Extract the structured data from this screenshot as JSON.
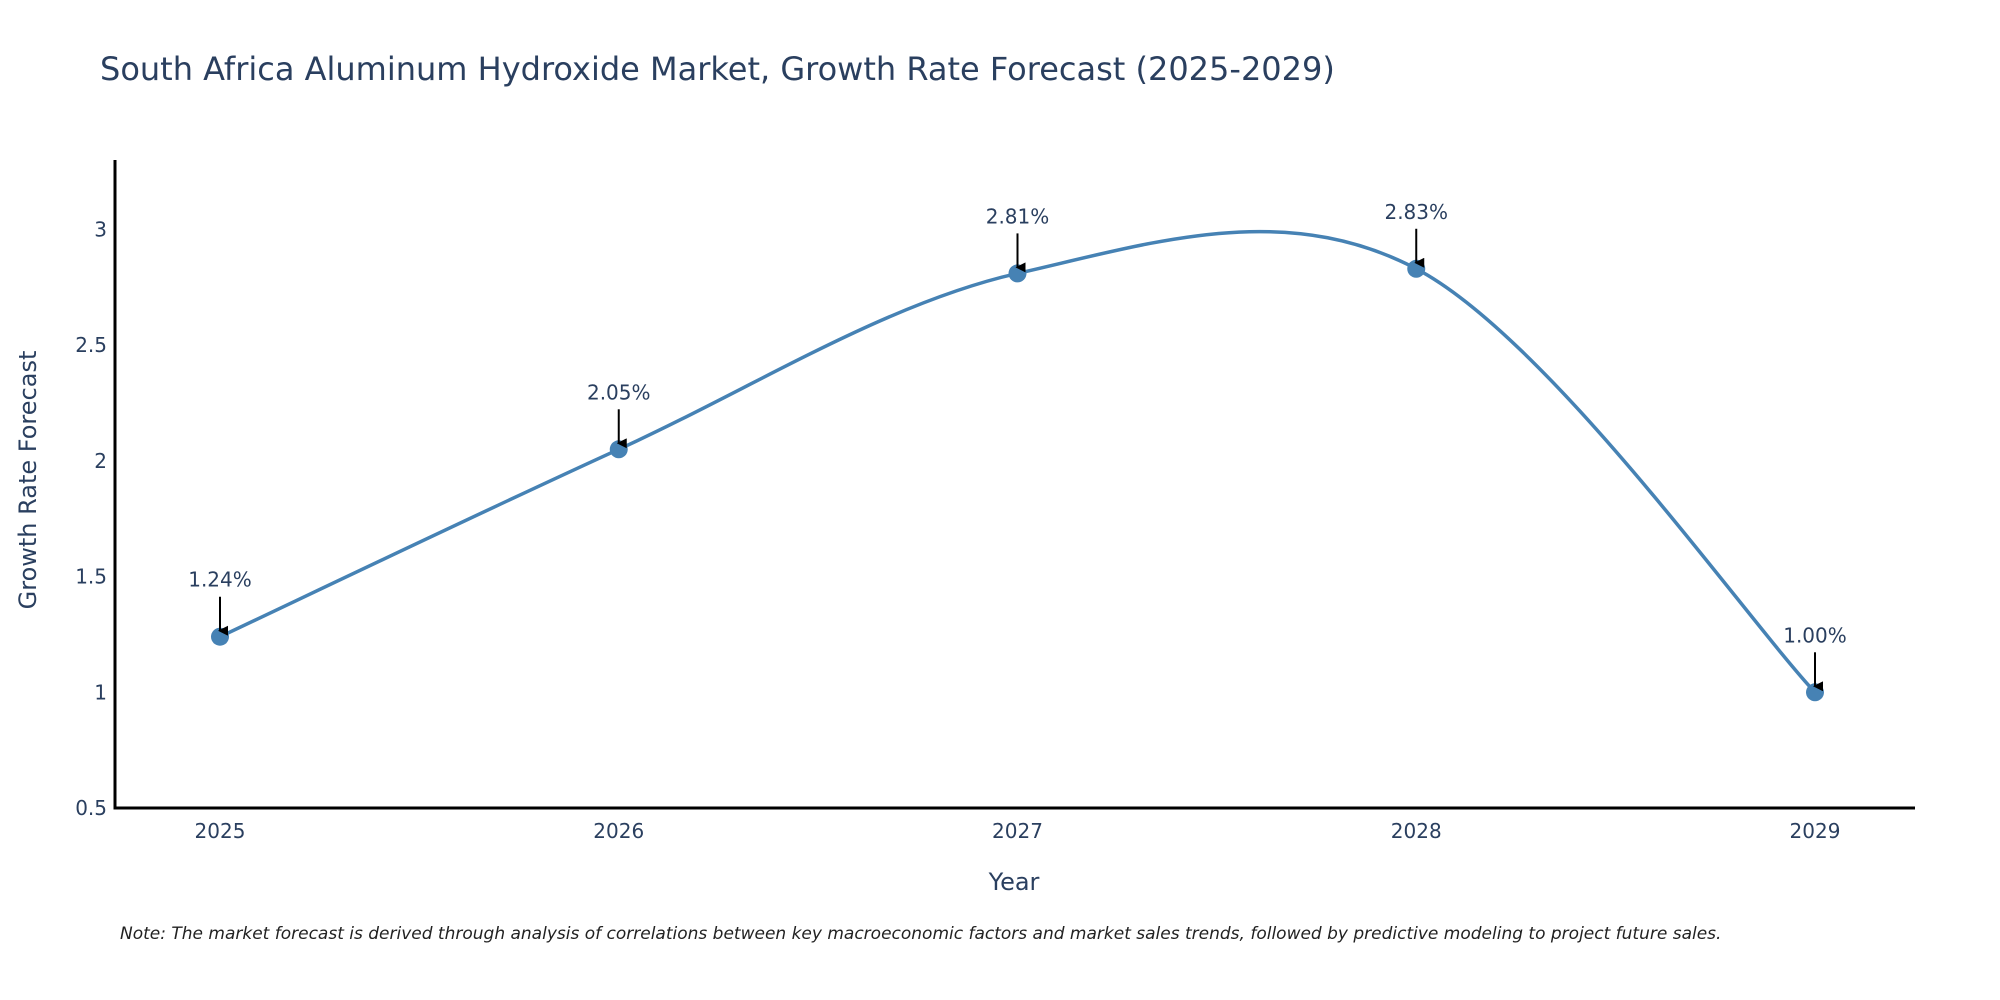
{
  "chart_data": {
    "type": "line",
    "title": "South Africa Aluminum Hydroxide Market, Growth Rate Forecast (2025-2029)",
    "xlabel": "Year",
    "ylabel": "Growth Rate Forecast",
    "categories": [
      "2025",
      "2026",
      "2027",
      "2028",
      "2029"
    ],
    "series": [
      {
        "name": "Growth Rate Forecast",
        "values": [
          1.24,
          2.05,
          2.81,
          2.83,
          1.0
        ],
        "color": "#4682b4",
        "line_shape": "spline"
      }
    ],
    "data_labels": [
      "1.24%",
      "2.05%",
      "2.81%",
      "2.83%",
      "1.00%"
    ],
    "ylim": [
      0.5,
      3.3
    ],
    "yticks": [
      0.5,
      1,
      1.5,
      2,
      2.5,
      3
    ],
    "ytick_labels": [
      "0.5",
      "1",
      "1.5",
      "2",
      "2.5",
      "3"
    ],
    "grid": false,
    "annotation_arrow_color": "#000000",
    "axis_color": "#000000",
    "text_color": "#2a3f5f",
    "note": "Note: The market forecast is derived through analysis of correlations between key macroeconomic factors and market sales trends, followed by predictive modeling to project future sales."
  }
}
